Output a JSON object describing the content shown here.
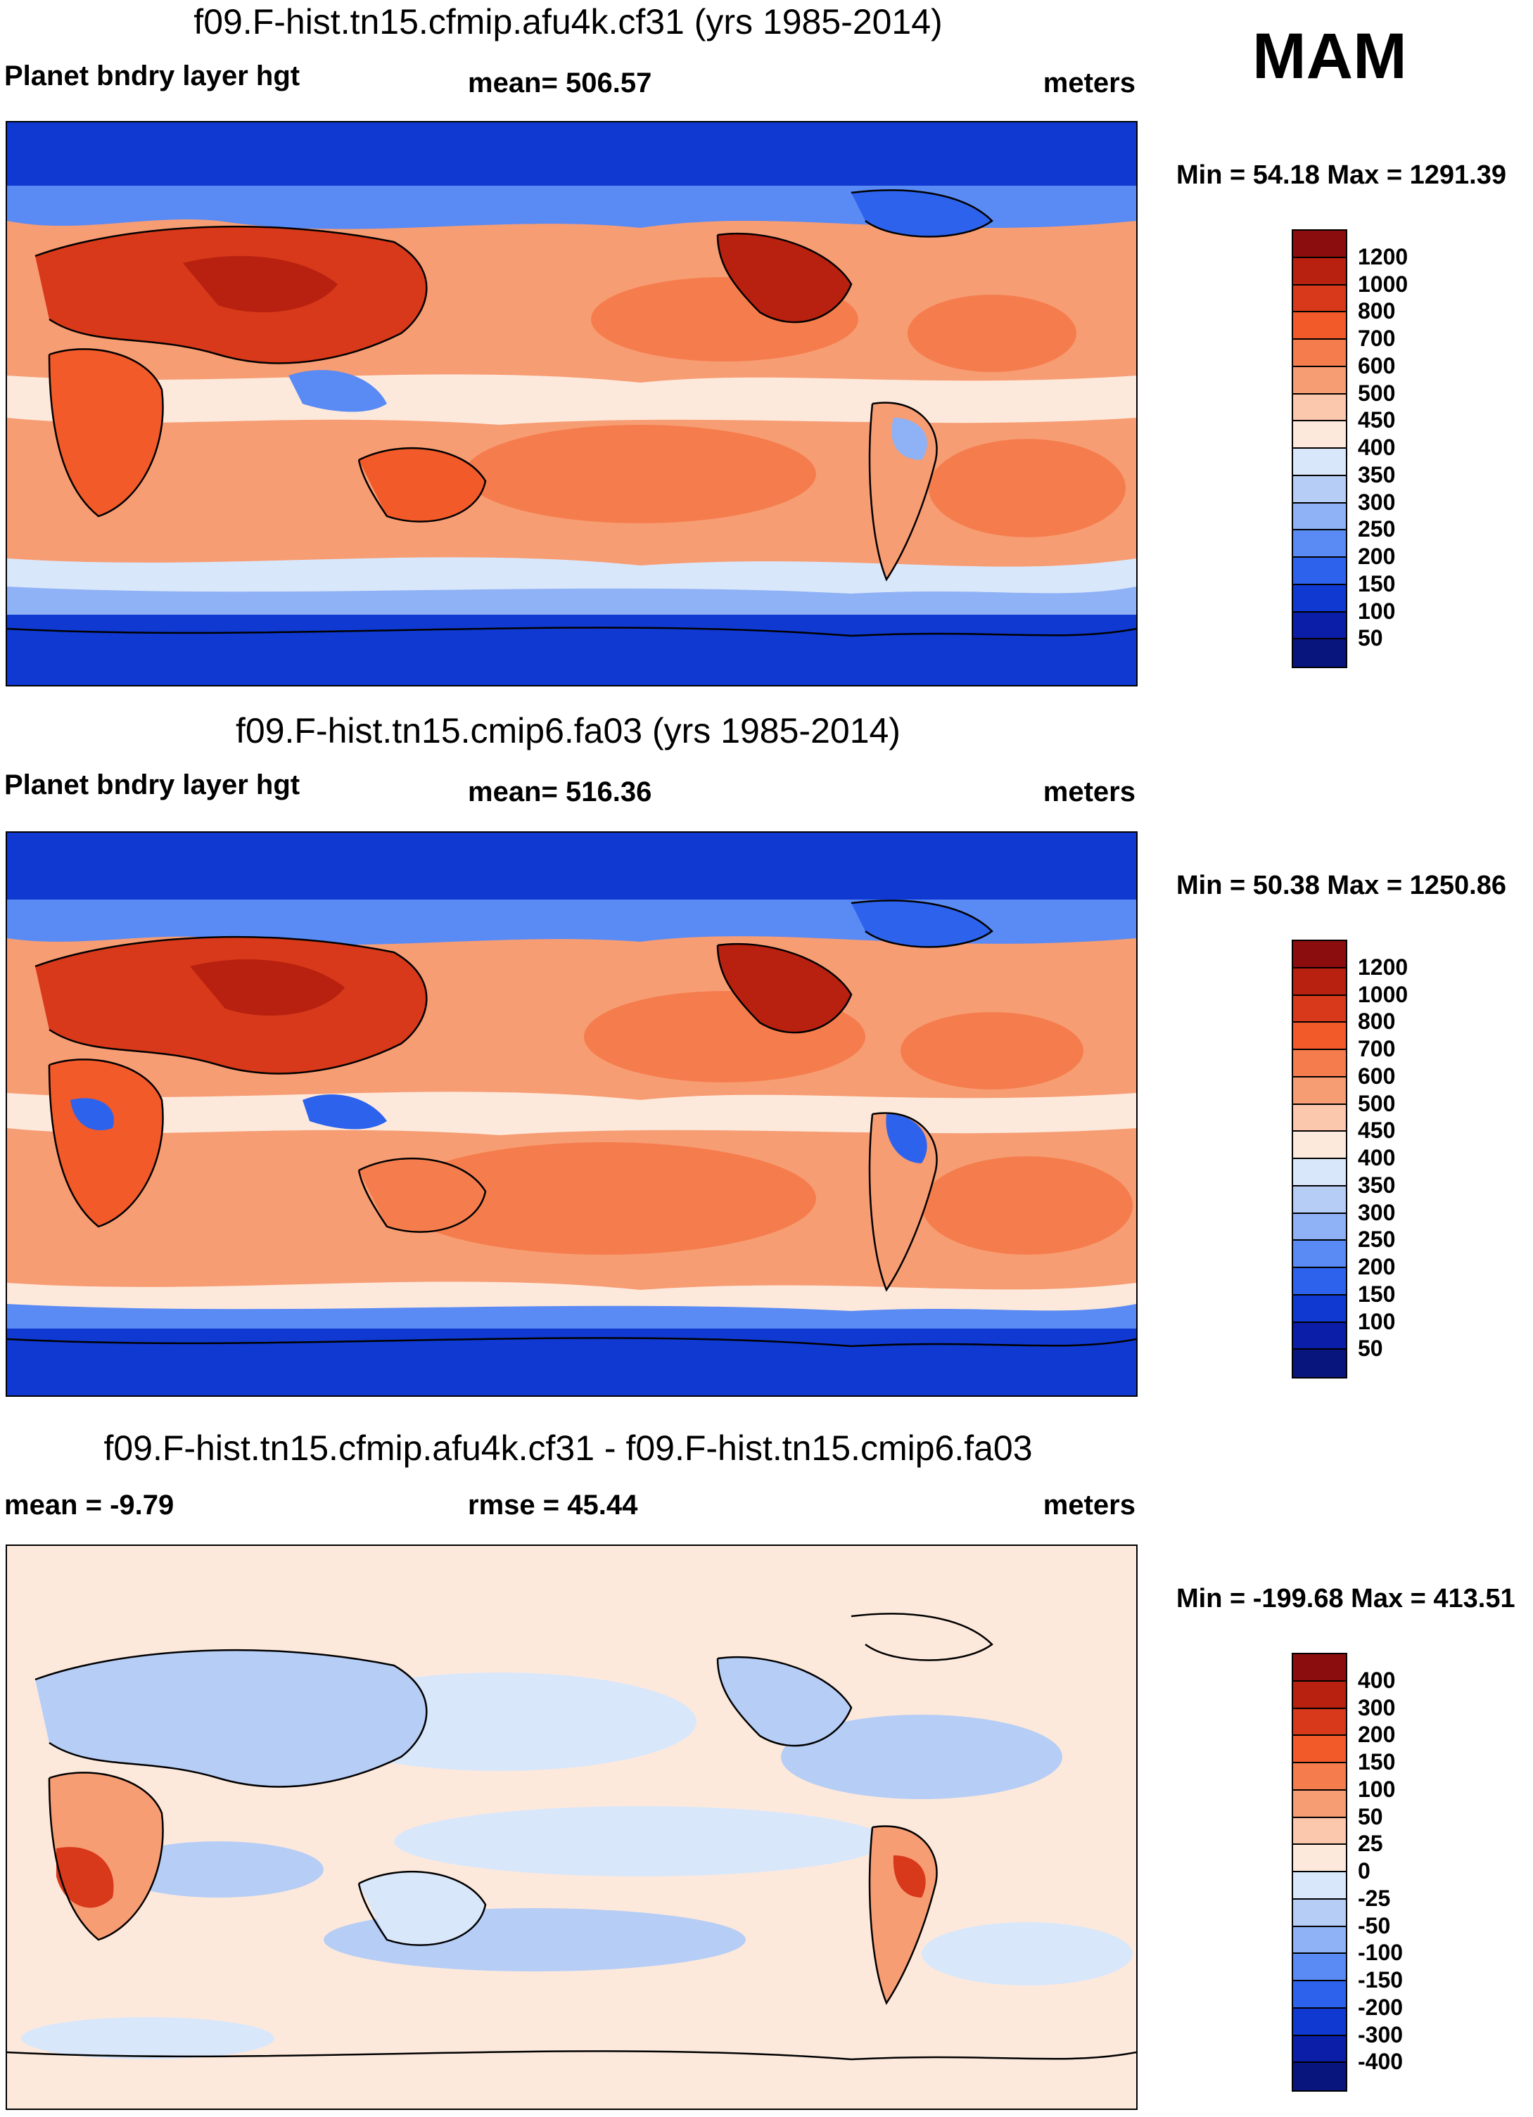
{
  "season": "MAM",
  "panels": [
    {
      "title": "f09.F-hist.tn15.cfmip.afu4k.cf31 (yrs 1985-2014)",
      "left_label": "Planet bndry layer hgt",
      "mid_label": "mean= 506.57",
      "right_label": "meters",
      "minmax": "Min =  54.18 Max = 1291.39",
      "colorbar": {
        "labels": [
          "1200",
          "1000",
          "800",
          "700",
          "600",
          "500",
          "450",
          "400",
          "350",
          "300",
          "250",
          "200",
          "150",
          "100",
          "50"
        ],
        "colors": [
          "#8c0d0d",
          "#b82110",
          "#d7391a",
          "#f25a2a",
          "#f57d4d",
          "#f79d74",
          "#fbc7ad",
          "#fde9dc",
          "#d9e7fb",
          "#b6cdf6",
          "#8fb1f5",
          "#5a8af3",
          "#2d63ec",
          "#0f39d1",
          "#0a1ea8",
          "#07157c"
        ]
      }
    },
    {
      "title": "f09.F-hist.tn15.cmip6.fa03 (yrs 1985-2014)",
      "left_label": "Planet bndry layer hgt",
      "mid_label": "mean= 516.36",
      "right_label": "meters",
      "minmax": "Min =  50.38 Max = 1250.86",
      "colorbar": {
        "labels": [
          "1200",
          "1000",
          "800",
          "700",
          "600",
          "500",
          "450",
          "400",
          "350",
          "300",
          "250",
          "200",
          "150",
          "100",
          "50"
        ],
        "colors": [
          "#8c0d0d",
          "#b82110",
          "#d7391a",
          "#f25a2a",
          "#f57d4d",
          "#f79d74",
          "#fbc7ad",
          "#fde9dc",
          "#d9e7fb",
          "#b6cdf6",
          "#8fb1f5",
          "#5a8af3",
          "#2d63ec",
          "#0f39d1",
          "#0a1ea8",
          "#07157c"
        ]
      }
    },
    {
      "title": "f09.F-hist.tn15.cfmip.afu4k.cf31 - f09.F-hist.tn15.cmip6.fa03",
      "left_label": "mean =  -9.79",
      "mid_label": "rmse =  45.44",
      "right_label": "meters",
      "minmax": "Min = -199.68 Max = 413.51",
      "colorbar": {
        "labels": [
          "400",
          "300",
          "200",
          "150",
          "100",
          "50",
          "25",
          "0",
          "-25",
          "-50",
          "-100",
          "-150",
          "-200",
          "-300",
          "-400"
        ],
        "colors": [
          "#8c0d0d",
          "#b82110",
          "#d7391a",
          "#f25a2a",
          "#f57d4d",
          "#f79d74",
          "#fbc7ad",
          "#fde9dc",
          "#d9e7fb",
          "#b6cdf6",
          "#8fb1f5",
          "#5a8af3",
          "#2d63ec",
          "#0f39d1",
          "#0a1ea8",
          "#07157c"
        ]
      }
    }
  ]
}
